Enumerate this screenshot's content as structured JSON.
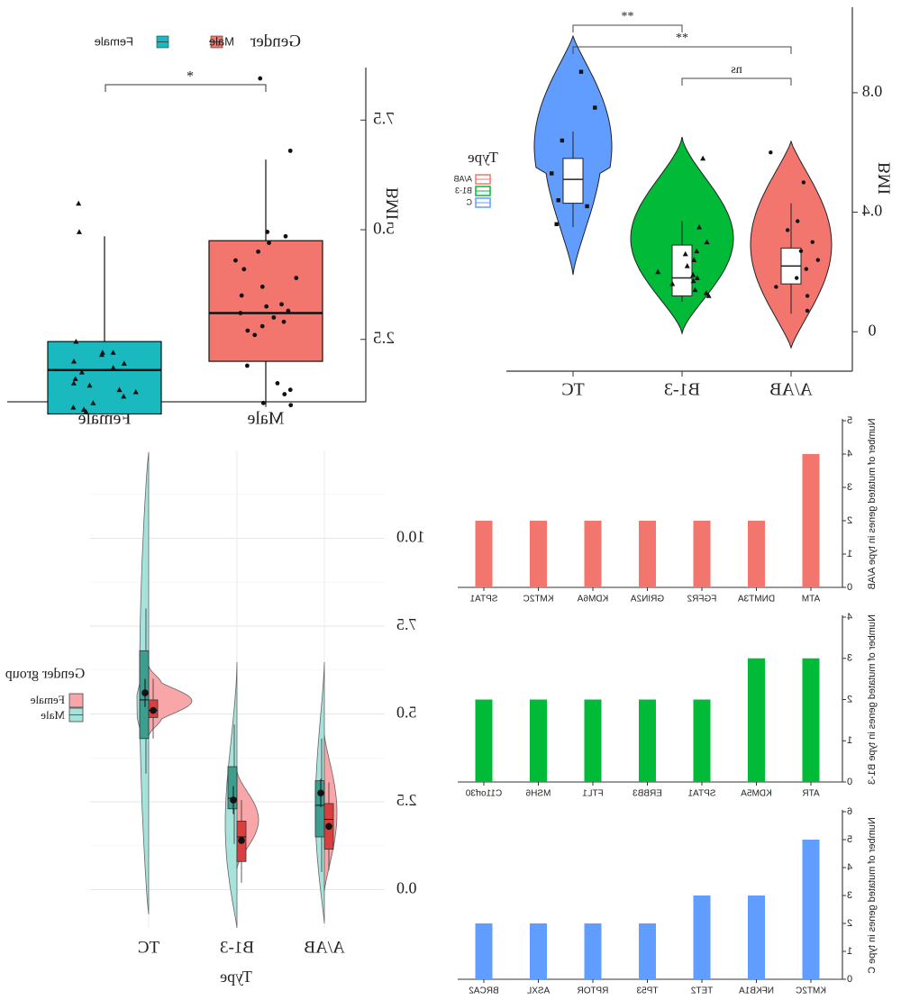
{
  "chart_data": [
    {
      "type": "box",
      "panel": "top-left",
      "legend_title": "Gender",
      "legend_entries": [
        {
          "name": "Male",
          "color": "#f3766e"
        },
        {
          "name": "Female",
          "color": "#1ab8bf"
        }
      ],
      "categories": [
        "Male",
        "Female"
      ],
      "ylabel": "BMI",
      "yticks": [
        "2.5",
        "5.0",
        "7.5"
      ],
      "ylim": [
        1.2,
        8.8
      ],
      "significance": "*",
      "series": [
        {
          "name": "Male",
          "color": "#f3766e",
          "box": {
            "min": 1.0,
            "q1": 2.0,
            "median": 3.1,
            "q3": 4.75,
            "max": 6.6
          },
          "points": [
            8.45,
            6.8,
            4.95,
            4.85,
            4.7,
            4.5,
            4.3,
            4.1,
            3.9,
            3.7,
            3.5,
            3.3,
            3.25,
            3.15,
            3.1,
            3.0,
            2.9,
            2.8,
            2.7,
            2.6,
            1.9,
            1.5,
            1.35,
            1.25,
            1.05,
            1.0
          ]
        },
        {
          "name": "Female",
          "color": "#1ab8bf",
          "box": {
            "min": 0.8,
            "q1": 0.8,
            "median": 1.8,
            "q3": 2.45,
            "max": 4.85
          },
          "points": [
            5.6,
            4.95,
            2.45,
            2.2,
            2.2,
            2.15,
            2.0,
            1.95,
            1.85,
            1.75,
            1.6,
            1.5,
            1.45,
            1.35,
            1.3,
            1.2,
            1.05,
            0.95,
            0.9,
            0.85
          ]
        }
      ]
    },
    {
      "type": "violin",
      "panel": "top-right",
      "legend_title": "Type",
      "legend_entries": [
        {
          "name": "A/AB",
          "color": "#f3766e"
        },
        {
          "name": "B1-3",
          "color": "#00ba38"
        },
        {
          "name": "C",
          "color": "#619cff"
        }
      ],
      "categories": [
        "TC",
        "B1-3",
        "A/AB"
      ],
      "ylabel": "BMI",
      "yticks": [
        "0",
        "0.4",
        "0.8"
      ],
      "ylim": [
        -0.12,
        1.05
      ],
      "significance": [
        {
          "from": "TC",
          "to": "B1-3",
          "label": "**"
        },
        {
          "from": "TC",
          "to": "A/AB",
          "label": "**"
        },
        {
          "from": "B1-3",
          "to": "A/AB",
          "label": "ns"
        }
      ],
      "series": [
        {
          "name": "TC",
          "color": "#619cff",
          "box": {
            "min": 0.35,
            "q1": 0.43,
            "median": 0.51,
            "q3": 0.58,
            "max": 0.67
          },
          "points": [
            0.87,
            0.75,
            0.64,
            0.53,
            0.44,
            0.42,
            0.36
          ]
        },
        {
          "name": "B1-3",
          "color": "#00ba38",
          "box": {
            "min": 0.1,
            "q1": 0.12,
            "median": 0.18,
            "q3": 0.29,
            "max": 0.37
          },
          "points": [
            0.58,
            0.35,
            0.3,
            0.27,
            0.26,
            0.24,
            0.22,
            0.2,
            0.19,
            0.18,
            0.17,
            0.16,
            0.14,
            0.13,
            0.12
          ]
        },
        {
          "name": "A/AB",
          "color": "#f3766e",
          "box": {
            "min": 0.06,
            "q1": 0.16,
            "median": 0.22,
            "q3": 0.28,
            "max": 0.43
          },
          "points": [
            0.6,
            0.5,
            0.37,
            0.34,
            0.3,
            0.27,
            0.24,
            0.21,
            0.18,
            0.15,
            0.12,
            0.07
          ]
        }
      ]
    },
    {
      "type": "split-violin",
      "panel": "bottom-left",
      "xlabel": "Type",
      "legend_title": "Gender group",
      "legend_entries": [
        {
          "name": "Female",
          "color": "#f8a6a8"
        },
        {
          "name": "Male",
          "color": "#a6e3da"
        }
      ],
      "categories": [
        "TC",
        "B1-3",
        "A/AB"
      ],
      "yticks": [
        "0.0",
        "2.5",
        "5.0",
        "7.5",
        "10.0"
      ],
      "ylim": [
        -0.5,
        12.5
      ],
      "series": [
        {
          "category": "TC",
          "male": {
            "q1": 4.3,
            "median": 5.4,
            "q3": 6.8,
            "mean": 5.6
          },
          "female": {
            "q1": 4.9,
            "median": 5.1,
            "q3": 5.4,
            "mean": 5.1
          }
        },
        {
          "category": "B1-3",
          "male": {
            "q1": 2.3,
            "median": 2.6,
            "q3": 3.5,
            "mean": 2.55
          },
          "female": {
            "q1": 0.8,
            "median": 1.5,
            "q3": 1.95,
            "mean": 1.4
          }
        },
        {
          "category": "A/AB",
          "male": {
            "q1": 1.5,
            "median": 2.4,
            "q3": 3.1,
            "mean": 2.75
          },
          "female": {
            "q1": 1.15,
            "median": 2.0,
            "q3": 2.45,
            "mean": 1.8
          }
        }
      ]
    },
    {
      "type": "bar",
      "panel": "bottom-right-1",
      "ylabel": "Number of mutated genes in type A/AB",
      "color": "#f3766e",
      "ylim": [
        0,
        5
      ],
      "yticks": [
        "0",
        "1",
        "2",
        "3",
        "4",
        "5"
      ],
      "categories": [
        "ATM",
        "DNMT3A",
        "FGFR2",
        "GRIN2A",
        "KDM6A",
        "KMT2C",
        "SPTA1"
      ],
      "values": [
        4,
        2,
        2,
        2,
        2,
        2,
        2
      ]
    },
    {
      "type": "bar",
      "panel": "bottom-right-2",
      "ylabel": "Number of mutated genes in type B1-3",
      "color": "#00ba38",
      "ylim": [
        0,
        4
      ],
      "yticks": [
        "0",
        "1",
        "2",
        "3",
        "4"
      ],
      "categories": [
        "ATR",
        "KDM5A",
        "SPTA1",
        "ERBB3",
        "FTL1",
        "MSH6",
        "C11orf30"
      ],
      "values": [
        3,
        3,
        2,
        2,
        2,
        2,
        2
      ]
    },
    {
      "type": "bar",
      "panel": "bottom-right-3",
      "ylabel": "Number of mutated genes in type C",
      "color": "#619cff",
      "ylim": [
        0,
        6
      ],
      "yticks": [
        "0",
        "1",
        "2",
        "3",
        "4",
        "5",
        "6"
      ],
      "categories": [
        "KMT2C",
        "NFKB1A",
        "TET2",
        "TP53",
        "RPTOR",
        "ASXL",
        "BRCA2"
      ],
      "values": [
        5,
        3,
        3,
        2,
        2,
        2,
        2
      ]
    }
  ]
}
